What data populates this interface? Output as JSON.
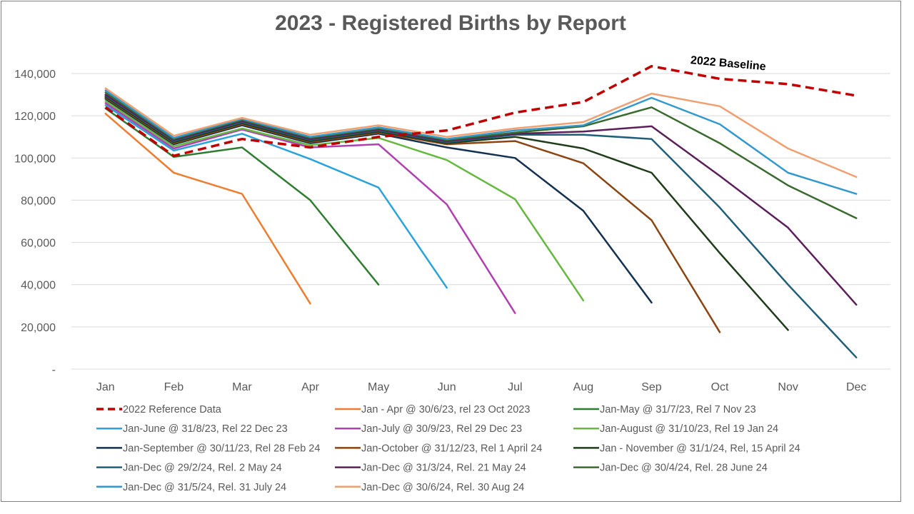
{
  "chart_data": {
    "type": "line",
    "title": "2023 - Registered Births by Report",
    "xlabel": "",
    "ylabel": "",
    "categories": [
      "Jan",
      "Feb",
      "Mar",
      "Apr",
      "May",
      "Jun",
      "Jul",
      "Aug",
      "Sep",
      "Oct",
      "Nov",
      "Dec"
    ],
    "ylim": [
      0,
      140000
    ],
    "yticks": [
      {
        "value": 0,
        "label": "-"
      },
      {
        "value": 20000,
        "label": "20,000"
      },
      {
        "value": 40000,
        "label": "40,000"
      },
      {
        "value": 60000,
        "label": "60,000"
      },
      {
        "value": 80000,
        "label": "80,000"
      },
      {
        "value": 100000,
        "label": "100,000"
      },
      {
        "value": 120000,
        "label": "120,000"
      },
      {
        "value": 140000,
        "label": "140,000"
      }
    ],
    "grid": true,
    "legend_position": "bottom",
    "annotation": {
      "text": "2022 Baseline",
      "x": "Sep",
      "y": 141000
    },
    "series": [
      {
        "name": "2022 Reference Data",
        "color": "#C00000",
        "dashed": true,
        "values": [
          124000,
          101000,
          109000,
          105000,
          110000,
          113000,
          121500,
          126500,
          143500,
          137500,
          135000,
          129500
        ]
      },
      {
        "name": "Jan - Apr @ 30/6/23, rel 23 Oct 2023",
        "color": "#ED7D31",
        "values": [
          121000,
          93000,
          83000,
          31000,
          null,
          null,
          null,
          null,
          null,
          null,
          null,
          null
        ]
      },
      {
        "name": "Jan-May @ 31/7/23, Rel 7 Nov 23",
        "color": "#2E7D32",
        "values": [
          123500,
          100500,
          105000,
          80000,
          40000,
          null,
          null,
          null,
          null,
          null,
          null,
          null
        ]
      },
      {
        "name": "Jan-June @ 31/8/23, Rel 22 Dec 23",
        "color": "#2BA3D9",
        "values": [
          125000,
          103500,
          111500,
          99500,
          86000,
          38500,
          null,
          null,
          null,
          null,
          null,
          null
        ]
      },
      {
        "name": "Jan-July @ 30/9/23, Rel 29 Dec 23",
        "color": "#B040B0",
        "values": [
          126000,
          104500,
          113500,
          105000,
          106500,
          78000,
          26500,
          null,
          null,
          null,
          null,
          null
        ]
      },
      {
        "name": "Jan-August @ 31/10/23, Rel 19 Jan 24",
        "color": "#66B840",
        "values": [
          127000,
          105500,
          114000,
          106000,
          109500,
          99000,
          80500,
          32500,
          null,
          null,
          null,
          null
        ]
      },
      {
        "name": "Jan-September @ 30/11/23, Rel 28 Feb 24",
        "color": "#14314F",
        "values": [
          128000,
          106500,
          115500,
          107000,
          111500,
          105000,
          100000,
          75000,
          31500,
          null,
          null,
          null
        ]
      },
      {
        "name": "Jan-October @ 31/12/23, Rel 1 April 24",
        "color": "#8B4513",
        "values": [
          128500,
          107000,
          116000,
          107500,
          112000,
          106500,
          108000,
          97500,
          70500,
          17500,
          null,
          null
        ]
      },
      {
        "name": "Jan - November @ 31/1/24, Rel, 15 April 24",
        "color": "#1F3D1A",
        "values": [
          129000,
          107500,
          116500,
          108000,
          112500,
          107000,
          110000,
          104500,
          93000,
          55000,
          18500,
          null
        ]
      },
      {
        "name": "Jan-Dec @ 29/2/24, Rel. 2 May 24",
        "color": "#1F5F7A",
        "values": [
          129500,
          108000,
          117000,
          108500,
          113000,
          107500,
          111000,
          111000,
          109000,
          76500,
          40000,
          5500
        ]
      },
      {
        "name": "Jan-Dec @ 31/3/24, Rel. 21 May 24",
        "color": "#5B1F5A",
        "values": [
          130000,
          108500,
          117500,
          109000,
          113500,
          108000,
          111500,
          112500,
          115000,
          91500,
          67000,
          30500
        ]
      },
      {
        "name": "Jan-Dec @ 30/4/24, Rel. 28 June 24",
        "color": "#3A6B2E",
        "values": [
          131000,
          109000,
          118000,
          109500,
          114000,
          108500,
          112000,
          115000,
          124000,
          107000,
          87000,
          71500
        ]
      },
      {
        "name": "Jan-Dec @ 31/5/24, Rel. 31 July 24",
        "color": "#3399CC",
        "values": [
          132000,
          109500,
          118500,
          110000,
          114500,
          109000,
          113000,
          115500,
          128500,
          116000,
          93000,
          83000
        ]
      },
      {
        "name": "Jan-Dec @ 30/6/24, Rel. 30 Aug 24",
        "color": "#F0A070",
        "values": [
          133000,
          110500,
          119000,
          111000,
          115500,
          110000,
          114000,
          117000,
          130500,
          124500,
          104500,
          91000
        ]
      }
    ]
  }
}
